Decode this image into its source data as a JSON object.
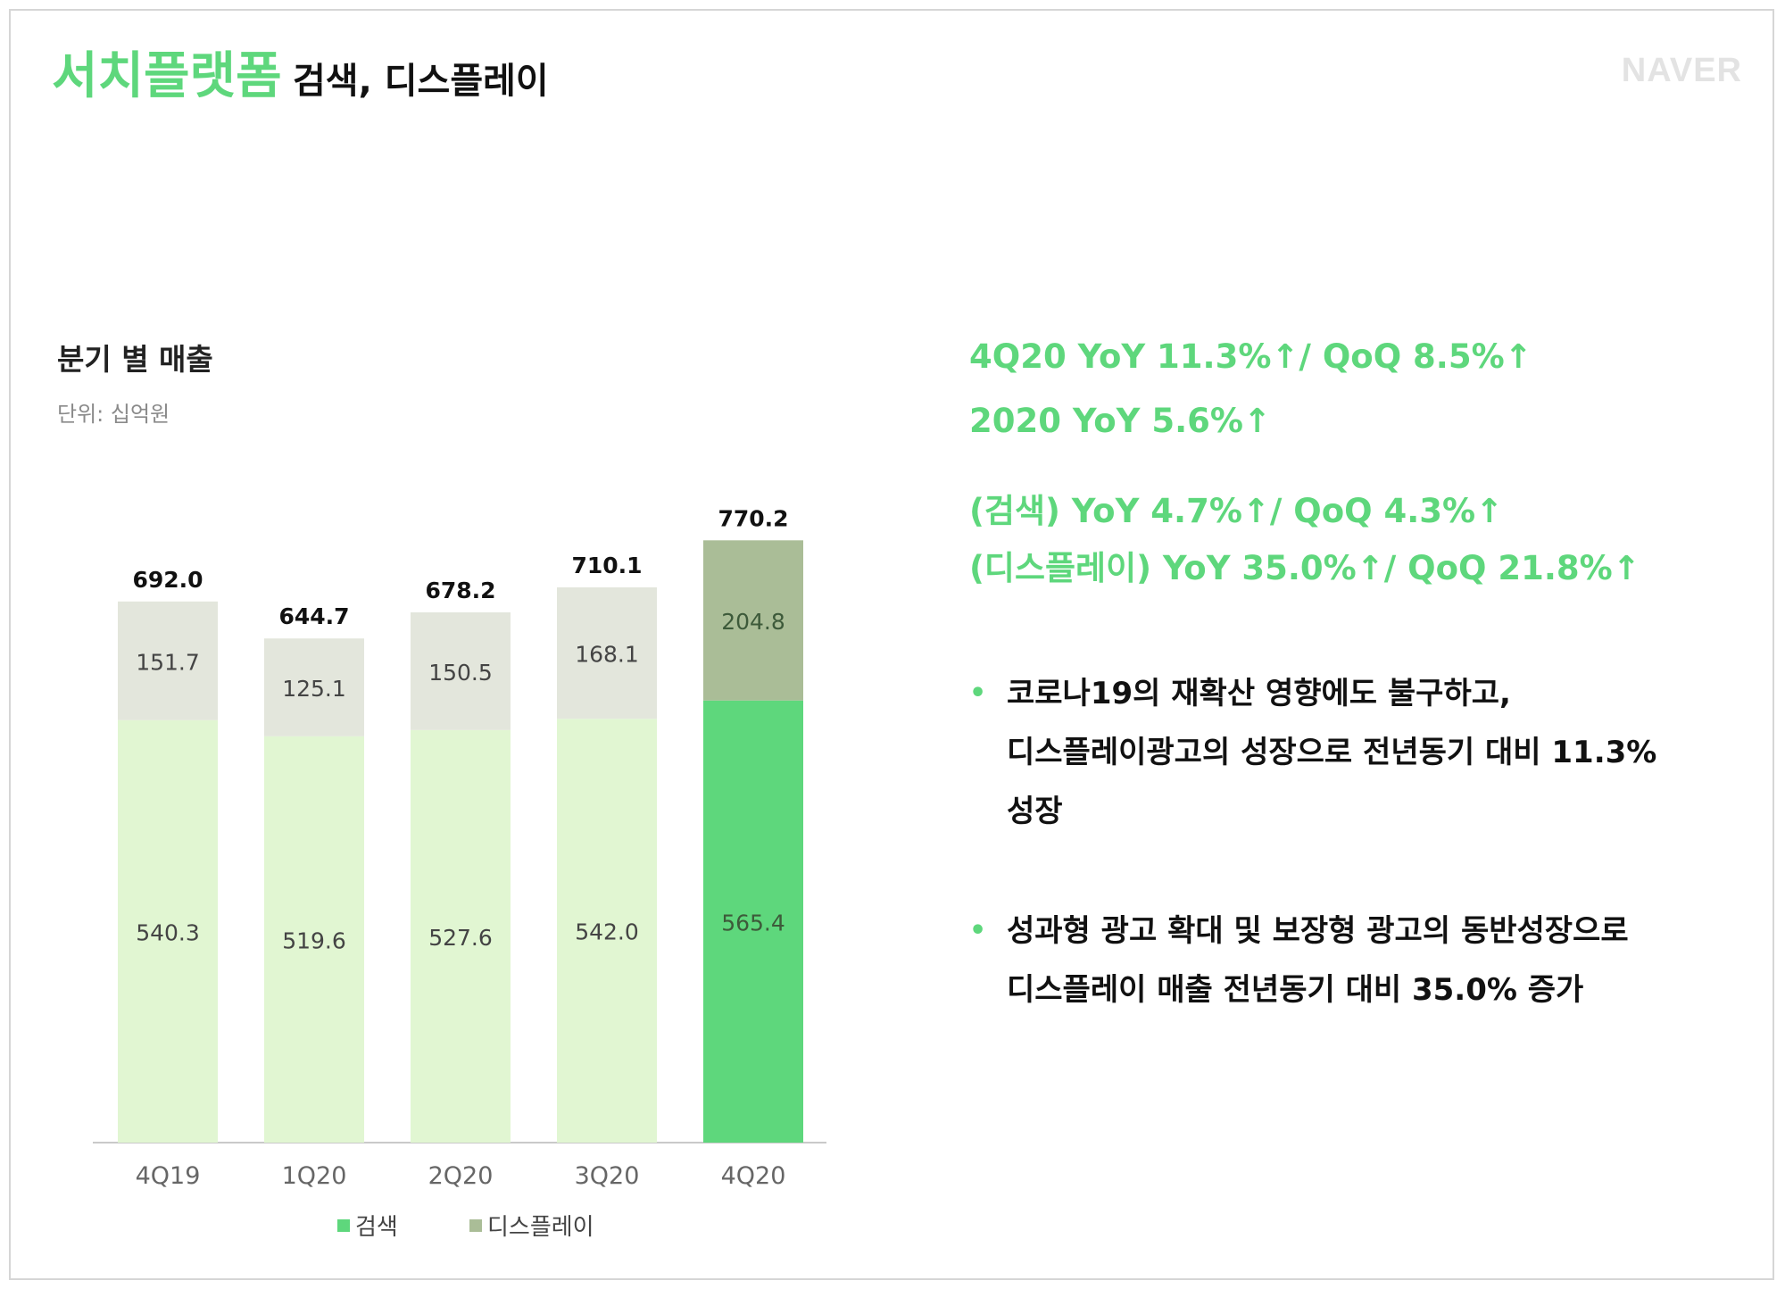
{
  "header": {
    "title": "서치플랫폼",
    "subtitle": "검색, 디스플레이",
    "logo_text": "NAVER"
  },
  "chart_section": {
    "heading": "분기 별 매출",
    "unit": "단위: 십억원"
  },
  "chart_data": {
    "type": "bar",
    "stacked": true,
    "categories": [
      "4Q19",
      "1Q20",
      "2Q20",
      "3Q20",
      "4Q20"
    ],
    "series": [
      {
        "name": "검색",
        "values": [
          540.3,
          519.6,
          527.6,
          542.0,
          565.4
        ],
        "color": "#e1f6d2",
        "highlight_color": "#5ed77c"
      },
      {
        "name": "디스플레이",
        "values": [
          151.7,
          125.1,
          150.5,
          168.1,
          204.8
        ],
        "color": "#e3e6dc",
        "highlight_color": "#aabd97"
      }
    ],
    "totals": [
      "692.0",
      "644.7",
      "678.2",
      "710.1",
      "770.2"
    ],
    "value_labels": [
      [
        "540.3",
        "519.6",
        "527.6",
        "542.0",
        "565.4"
      ],
      [
        "151.7",
        "125.1",
        "150.5",
        "168.1",
        "204.8"
      ]
    ],
    "highlight_index": 4,
    "legend_position": "bottom",
    "grid": false
  },
  "metrics": [
    "4Q20 YoY 11.3%↑/ QoQ 8.5%↑",
    "2020 YoY 5.6%↑",
    "(검색) YoY 4.7%↑/ QoQ 4.3%↑",
    "(디스플레이) YoY 35.0%↑/ QoQ 21.8%↑"
  ],
  "bullets": [
    {
      "marker": "•",
      "lines": [
        "코로나19의 재확산 영향에도 불구하고,",
        "디스플레이광고의 성장으로 전년동기 대비 11.3%",
        "성장"
      ]
    },
    {
      "marker": "•",
      "lines": [
        "성과형 광고 확대 및 보장형 광고의 동반성장으로",
        "디스플레이 매출 전년동기 대비 35.0% 증가"
      ]
    }
  ]
}
